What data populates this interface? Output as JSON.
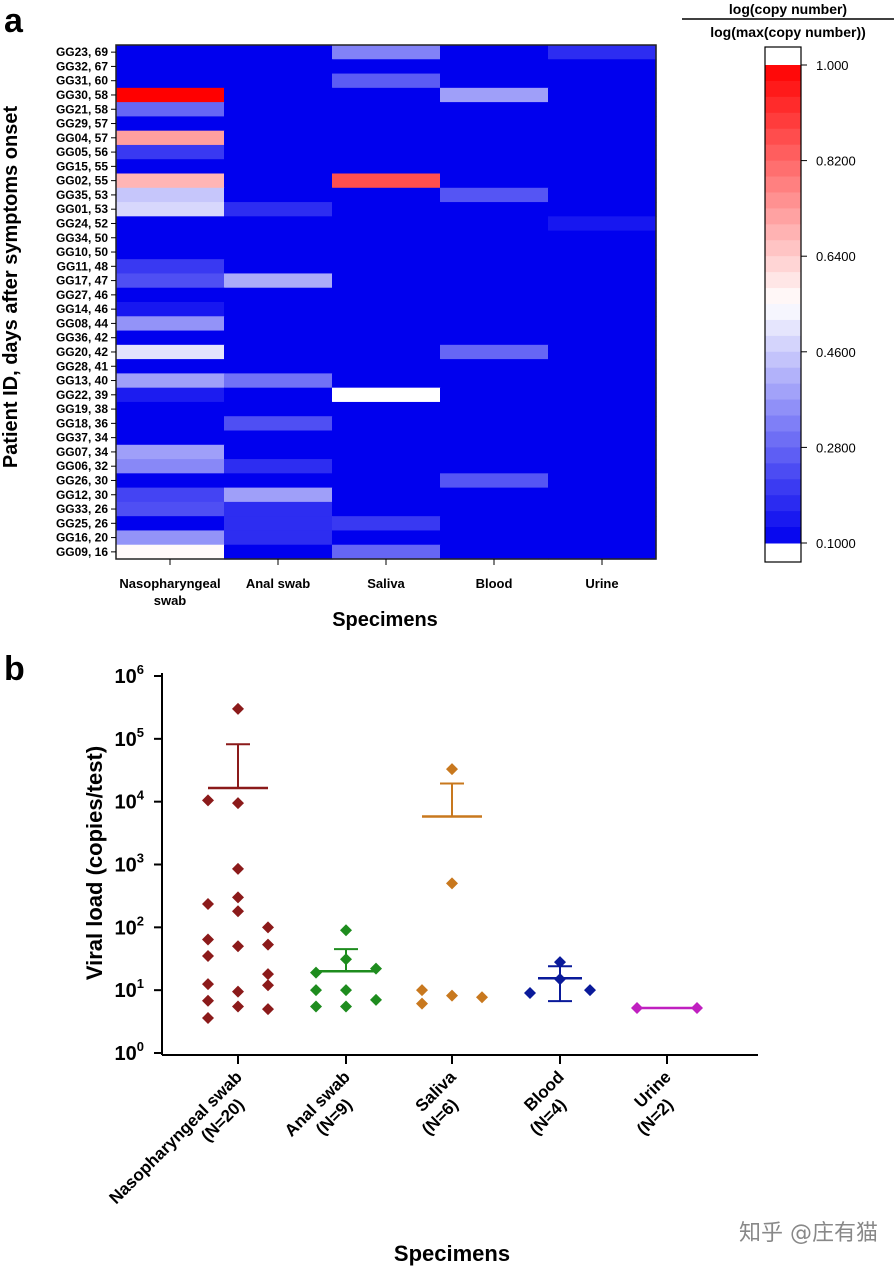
{
  "panel_a_letter": "a",
  "panel_b_letter": "b",
  "watermark": "知乎 @庄有猫",
  "chart_data": [
    {
      "type": "heatmap",
      "xlabel": "Specimens",
      "ylabel": "Patient ID, days after symptoms onset",
      "categories": [
        "Nasopharyngeal swab",
        "Anal swab",
        "Saliva",
        "Blood",
        "Urine"
      ],
      "category_lines": [
        [
          "Nasopharyngeal",
          "swab"
        ],
        [
          "Anal swab"
        ],
        [
          "Saliva"
        ],
        [
          "Blood"
        ],
        [
          "Urine"
        ]
      ],
      "rows": [
        "GG23, 69",
        "GG32, 67",
        "GG31, 60",
        "GG30, 58",
        "GG21, 58",
        "GG29, 57",
        "GG04, 57",
        "GG05, 56",
        "GG15, 55",
        "GG02, 55",
        "GG35, 53",
        "GG01, 53",
        "GG24, 52",
        "GG34, 50",
        "GG10, 50",
        "GG11, 48",
        "GG17, 47",
        "GG27, 46",
        "GG14, 46",
        "GG08, 44",
        "GG36, 42",
        "GG20, 42",
        "GG28, 41",
        "GG13, 40",
        "GG22, 39",
        "GG19, 38",
        "GG18, 36",
        "GG37, 34",
        "GG07, 34",
        "GG06, 32",
        "GG26, 30",
        "GG12, 30",
        "GG33, 26",
        "GG25, 26",
        "GG16, 20",
        "GG09, 16"
      ],
      "values": [
        [
          0.1,
          0.1,
          0.33,
          0.1,
          0.18
        ],
        [
          0.1,
          0.1,
          0.1,
          0.1,
          0.1
        ],
        [
          0.1,
          0.1,
          0.26,
          0.1,
          0.1
        ],
        [
          1.0,
          0.1,
          0.1,
          0.38,
          0.1
        ],
        [
          0.28,
          0.1,
          0.1,
          0.1,
          0.1
        ],
        [
          0.1,
          0.1,
          0.1,
          0.1,
          0.1
        ],
        [
          0.72,
          0.1,
          0.1,
          0.1,
          0.1
        ],
        [
          0.2,
          0.1,
          0.1,
          0.1,
          0.1
        ],
        [
          0.1,
          0.1,
          0.1,
          0.1,
          0.1
        ],
        [
          0.68,
          0.1,
          0.86,
          0.1,
          0.1
        ],
        [
          0.45,
          0.1,
          0.1,
          0.25,
          0.1
        ],
        [
          0.48,
          0.18,
          0.1,
          0.1,
          0.1
        ],
        [
          0.1,
          0.1,
          0.1,
          0.1,
          0.14
        ],
        [
          0.1,
          0.1,
          0.1,
          0.1,
          0.1
        ],
        [
          0.1,
          0.1,
          0.1,
          0.1,
          0.1
        ],
        [
          0.2,
          0.1,
          0.1,
          0.1,
          0.1
        ],
        [
          0.24,
          0.4,
          0.1,
          0.1,
          0.1
        ],
        [
          0.1,
          0.1,
          0.1,
          0.1,
          0.1
        ],
        [
          0.14,
          0.1,
          0.1,
          0.1,
          0.1
        ],
        [
          0.36,
          0.1,
          0.1,
          0.1,
          0.1
        ],
        [
          0.1,
          0.1,
          0.1,
          0.1,
          0.1
        ],
        [
          0.5,
          0.1,
          0.1,
          0.28,
          0.1
        ],
        [
          0.1,
          0.1,
          0.1,
          0.1,
          0.1
        ],
        [
          0.38,
          0.3,
          0.1,
          0.1,
          0.1
        ],
        [
          0.15,
          0.1,
          0.55,
          0.1,
          0.1
        ],
        [
          0.1,
          0.1,
          0.1,
          0.1,
          0.1
        ],
        [
          0.1,
          0.24,
          0.1,
          0.1,
          0.1
        ],
        [
          0.1,
          0.1,
          0.1,
          0.1,
          0.1
        ],
        [
          0.38,
          0.1,
          0.1,
          0.1,
          0.1
        ],
        [
          0.34,
          0.18,
          0.1,
          0.1,
          0.1
        ],
        [
          0.1,
          0.1,
          0.1,
          0.25,
          0.1
        ],
        [
          0.22,
          0.38,
          0.1,
          0.1,
          0.1
        ],
        [
          0.24,
          0.18,
          0.1,
          0.1,
          0.1
        ],
        [
          0.1,
          0.18,
          0.2,
          0.1,
          0.1
        ],
        [
          0.36,
          0.18,
          0.1,
          0.1,
          0.1
        ],
        [
          0.56,
          0.1,
          0.28,
          0.1,
          0.1
        ]
      ],
      "colorbar": {
        "title_numerator": "log(copy number)",
        "title_denominator": "log(max(copy number))",
        "range": [
          0.1,
          1.0
        ],
        "ticks": [
          "1.000",
          "0.8200",
          "0.6400",
          "0.4600",
          "0.2800",
          "0.1000"
        ],
        "tick_values": [
          1.0,
          0.82,
          0.64,
          0.46,
          0.28,
          0.1
        ],
        "colors": {
          "low": "#0000ee",
          "mid": "#ffffff",
          "high": "#ff0000"
        }
      }
    },
    {
      "type": "scatter",
      "xlabel": "Specimens",
      "ylabel": "Viral load (copies/test)",
      "log_y": true,
      "ylim": [
        1,
        1000000
      ],
      "y_ticks": [
        {
          "base": "10",
          "exp": "0",
          "value": 1
        },
        {
          "base": "10",
          "exp": "1",
          "value": 10
        },
        {
          "base": "10",
          "exp": "2",
          "value": 100
        },
        {
          "base": "10",
          "exp": "3",
          "value": 1000
        },
        {
          "base": "10",
          "exp": "4",
          "value": 10000
        },
        {
          "base": "10",
          "exp": "5",
          "value": 100000
        },
        {
          "base": "10",
          "exp": "6",
          "value": 1000000
        }
      ],
      "series": [
        {
          "category": "Nasopharyngeal swab",
          "label_lines": [
            "Nasopharyngeal swab",
            "(N=20)"
          ],
          "color": "#8b1a1a",
          "mean": 16500,
          "upper": 82000,
          "points": [
            {
              "dx": 0,
              "y": 300000
            },
            {
              "dx": -1,
              "y": 10500
            },
            {
              "dx": 0,
              "y": 9500
            },
            {
              "dx": 0,
              "y": 850
            },
            {
              "dx": -1,
              "y": 235
            },
            {
              "dx": 0,
              "y": 300
            },
            {
              "dx": 0,
              "y": 180
            },
            {
              "dx": 1,
              "y": 100
            },
            {
              "dx": -1,
              "y": 64
            },
            {
              "dx": 0,
              "y": 50
            },
            {
              "dx": 1,
              "y": 53
            },
            {
              "dx": -1,
              "y": 35
            },
            {
              "dx": 1,
              "y": 18
            },
            {
              "dx": -1,
              "y": 12.5
            },
            {
              "dx": 0,
              "y": 9.5
            },
            {
              "dx": -1,
              "y": 6.8
            },
            {
              "dx": 0,
              "y": 5.5
            },
            {
              "dx": 1,
              "y": 5.0
            },
            {
              "dx": -1,
              "y": 3.6
            },
            {
              "dx": 1,
              "y": 12
            }
          ]
        },
        {
          "category": "Anal swab",
          "label_lines": [
            "Anal swab",
            "(N=9)"
          ],
          "color": "#1e8c1e",
          "mean": 20,
          "upper": 45,
          "lower": null,
          "points": [
            {
              "dx": 0,
              "y": 90
            },
            {
              "dx": 0,
              "y": 31
            },
            {
              "dx": -1,
              "y": 19
            },
            {
              "dx": 1,
              "y": 22
            },
            {
              "dx": -1,
              "y": 10
            },
            {
              "dx": 0,
              "y": 10
            },
            {
              "dx": -1,
              "y": 5.5
            },
            {
              "dx": 0,
              "y": 5.5
            },
            {
              "dx": 1,
              "y": 7
            }
          ]
        },
        {
          "category": "Saliva",
          "label_lines": [
            "Saliva",
            "(N=6)"
          ],
          "color": "#c8781e",
          "mean": 5800,
          "upper": 19500,
          "points": [
            {
              "dx": 0,
              "y": 33000
            },
            {
              "dx": 0,
              "y": 500
            },
            {
              "dx": -1,
              "y": 10
            },
            {
              "dx": -1,
              "y": 6.1
            },
            {
              "dx": 0,
              "y": 8.2
            },
            {
              "dx": 1,
              "y": 7.7
            }
          ]
        },
        {
          "category": "Blood",
          "label_lines": [
            "Blood",
            "(N=4)"
          ],
          "color": "#0a1a9a",
          "mean": 15.5,
          "upper": 24,
          "lower": 6.7,
          "points": [
            {
              "dx": 0,
              "y": 28
            },
            {
              "dx": 0,
              "y": 15
            },
            {
              "dx": -1,
              "y": 9
            },
            {
              "dx": 1,
              "y": 10
            }
          ]
        },
        {
          "category": "Urine",
          "label_lines": [
            "Urine",
            "(N=2)"
          ],
          "color": "#c020c0",
          "mean": 5.2,
          "points": [
            {
              "dx": -1,
              "y": 5.2
            },
            {
              "dx": 1,
              "y": 5.2
            }
          ]
        }
      ]
    }
  ]
}
